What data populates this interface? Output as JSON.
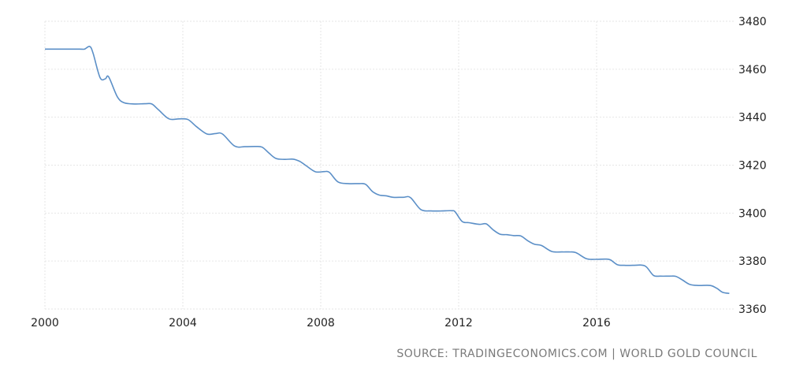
{
  "chart_data": {
    "type": "line",
    "title": "",
    "xlabel": "",
    "ylabel": "",
    "xlim": [
      2000,
      2020
    ],
    "ylim": [
      3360,
      3480
    ],
    "x_ticks": [
      2000,
      2004,
      2008,
      2012,
      2016
    ],
    "y_ticks": [
      3360,
      3380,
      3400,
      3420,
      3440,
      3460,
      3480
    ],
    "grid": true,
    "legend": "none",
    "series": [
      {
        "color": "#5b8fc7",
        "points": [
          [
            2000.0,
            3468.4
          ],
          [
            2000.5,
            3468.4
          ],
          [
            2001.0,
            3468.4
          ],
          [
            2001.15,
            3468.4
          ],
          [
            2001.3,
            3469.5
          ],
          [
            2001.4,
            3466.5
          ],
          [
            2001.6,
            3456.5
          ],
          [
            2001.75,
            3456.0
          ],
          [
            2001.85,
            3456.8
          ],
          [
            2002.1,
            3448.5
          ],
          [
            2002.3,
            3446.0
          ],
          [
            2002.6,
            3445.5
          ],
          [
            2002.9,
            3445.6
          ],
          [
            2003.1,
            3445.5
          ],
          [
            2003.3,
            3443.0
          ],
          [
            2003.6,
            3439.3
          ],
          [
            2003.9,
            3439.3
          ],
          [
            2004.15,
            3439.0
          ],
          [
            2004.4,
            3436.0
          ],
          [
            2004.7,
            3433.0
          ],
          [
            2004.95,
            3433.2
          ],
          [
            2005.15,
            3433.0
          ],
          [
            2005.5,
            3428.0
          ],
          [
            2005.8,
            3427.7
          ],
          [
            2006.1,
            3427.8
          ],
          [
            2006.3,
            3427.5
          ],
          [
            2006.5,
            3425.0
          ],
          [
            2006.7,
            3422.8
          ],
          [
            2006.95,
            3422.4
          ],
          [
            2007.2,
            3422.5
          ],
          [
            2007.4,
            3421.5
          ],
          [
            2007.6,
            3419.5
          ],
          [
            2007.85,
            3417.2
          ],
          [
            2008.1,
            3417.3
          ],
          [
            2008.25,
            3417.0
          ],
          [
            2008.5,
            3413.0
          ],
          [
            2008.8,
            3412.3
          ],
          [
            2009.1,
            3412.3
          ],
          [
            2009.3,
            3412.0
          ],
          [
            2009.5,
            3409.0
          ],
          [
            2009.7,
            3407.5
          ],
          [
            2009.9,
            3407.2
          ],
          [
            2010.1,
            3406.6
          ],
          [
            2010.4,
            3406.6
          ],
          [
            2010.6,
            3406.5
          ],
          [
            2010.9,
            3401.5
          ],
          [
            2011.2,
            3400.9
          ],
          [
            2011.5,
            3400.9
          ],
          [
            2011.8,
            3401.0
          ],
          [
            2011.9,
            3400.5
          ],
          [
            2012.1,
            3396.5
          ],
          [
            2012.3,
            3396.0
          ],
          [
            2012.6,
            3395.3
          ],
          [
            2012.8,
            3395.5
          ],
          [
            2013.0,
            3393.0
          ],
          [
            2013.2,
            3391.2
          ],
          [
            2013.4,
            3391.0
          ],
          [
            2013.6,
            3390.6
          ],
          [
            2013.8,
            3390.5
          ],
          [
            2014.0,
            3388.5
          ],
          [
            2014.2,
            3387.0
          ],
          [
            2014.4,
            3386.5
          ],
          [
            2014.7,
            3384.0
          ],
          [
            2015.0,
            3383.8
          ],
          [
            2015.2,
            3383.8
          ],
          [
            2015.4,
            3383.5
          ],
          [
            2015.7,
            3381.0
          ],
          [
            2015.95,
            3380.7
          ],
          [
            2016.25,
            3380.8
          ],
          [
            2016.4,
            3380.5
          ],
          [
            2016.6,
            3378.5
          ],
          [
            2016.8,
            3378.2
          ],
          [
            2017.05,
            3378.2
          ],
          [
            2017.3,
            3378.3
          ],
          [
            2017.45,
            3377.5
          ],
          [
            2017.65,
            3374.0
          ],
          [
            2017.85,
            3373.7
          ],
          [
            2018.1,
            3373.7
          ],
          [
            2018.3,
            3373.6
          ],
          [
            2018.5,
            3372.0
          ],
          [
            2018.7,
            3370.3
          ],
          [
            2018.95,
            3369.8
          ],
          [
            2019.3,
            3369.8
          ],
          [
            2019.5,
            3368.5
          ],
          [
            2019.65,
            3367.0
          ],
          [
            2019.85,
            3366.5
          ]
        ]
      }
    ]
  },
  "footer": {
    "source": "SOURCE: TRADINGECONOMICS.COM | WORLD GOLD COUNCIL"
  }
}
